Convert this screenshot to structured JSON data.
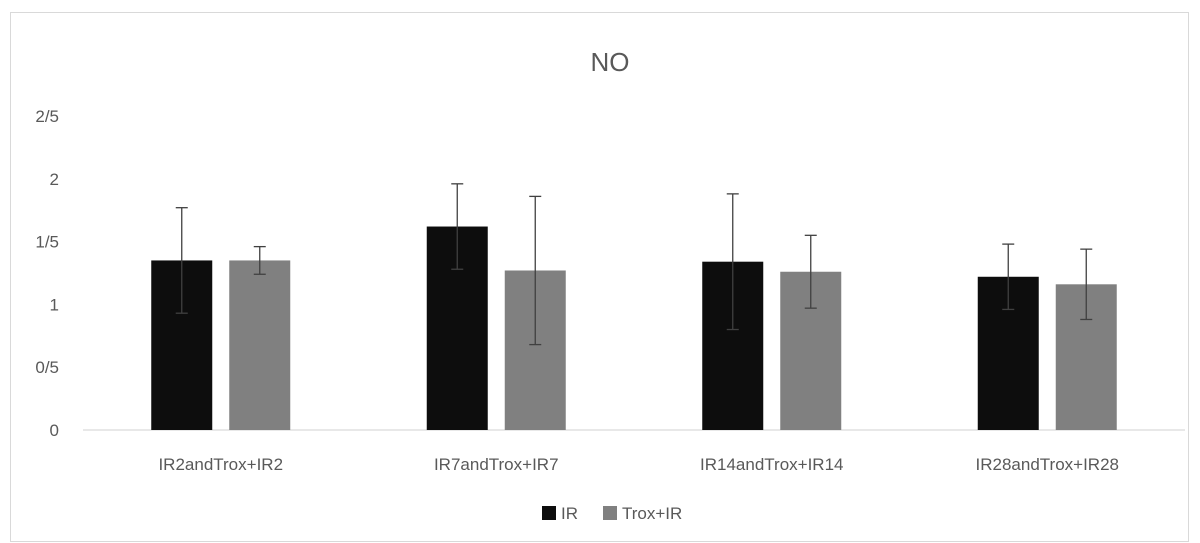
{
  "chart_data": {
    "type": "bar",
    "title": "NO",
    "xlabel": "",
    "ylabel": "",
    "ylim": [
      0,
      2.5
    ],
    "y_ticks": [
      0,
      0.5,
      1,
      1.5,
      2,
      2.5
    ],
    "y_tick_labels": [
      "0",
      "0/5",
      "1",
      "1/5",
      "2",
      "2/5"
    ],
    "categories": [
      "IR2andTrox+IR2",
      "IR7andTrox+IR7",
      "IR14andTrox+IR14",
      "IR28andTrox+IR28"
    ],
    "series": [
      {
        "name": "IR",
        "color": "#0d0d0d",
        "values": [
          1.35,
          1.62,
          1.34,
          1.22
        ],
        "errors": [
          0.42,
          0.34,
          0.54,
          0.26
        ]
      },
      {
        "name": "Trox+IR",
        "color": "#808080",
        "values": [
          1.35,
          1.27,
          1.26,
          1.16
        ],
        "errors": [
          0.11,
          0.59,
          0.29,
          0.28
        ]
      }
    ],
    "grid": false,
    "legend_position": "bottom"
  }
}
